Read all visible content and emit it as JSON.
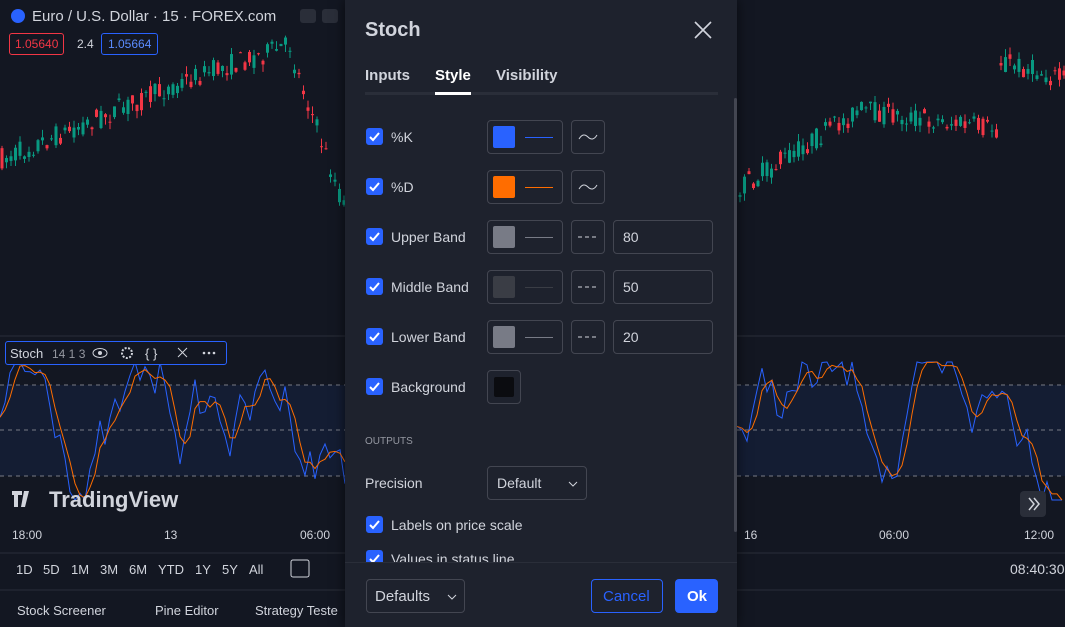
{
  "header": {
    "symbol": "Euro / U.S. Dollar · 15 · FOREX.com",
    "bid": "1.05640",
    "spread": "2.4",
    "ask": "1.05664"
  },
  "indicator_legend": {
    "name": "Stoch",
    "params": "14 1 3"
  },
  "logo": "TradingView",
  "time_axis": {
    "left": [
      "18:00",
      "13",
      "06:00"
    ],
    "right": [
      "16",
      "06:00",
      "12:00"
    ]
  },
  "periods": [
    "1D",
    "5D",
    "1M",
    "3M",
    "6M",
    "YTD",
    "1Y",
    "5Y",
    "All"
  ],
  "clock": "08:40:30",
  "bottom_tabs": [
    "Stock Screener",
    "Pine Editor",
    "Strategy Teste"
  ],
  "dialog": {
    "title": "Stoch",
    "tabs": [
      "Inputs",
      "Style",
      "Visibility"
    ],
    "active_tab": 1,
    "rows": [
      {
        "label": "%K",
        "color": "#2962ff"
      },
      {
        "label": "%D",
        "color": "#ff6d00"
      },
      {
        "label": "Upper Band",
        "color": "#787b86",
        "value": 80
      },
      {
        "label": "Middle Band",
        "color": "#3a3d45",
        "value": 50
      },
      {
        "label": "Lower Band",
        "color": "#787b86",
        "value": 20
      },
      {
        "label": "Background",
        "color": "#0b0c10"
      }
    ],
    "outputs_heading": "OUTPUTS",
    "precision_label": "Precision",
    "precision_value": "Default",
    "checkboxes": [
      "Labels on price scale",
      "Values in status line"
    ],
    "footer": {
      "defaults": "Defaults",
      "cancel": "Cancel",
      "ok": "Ok"
    }
  }
}
